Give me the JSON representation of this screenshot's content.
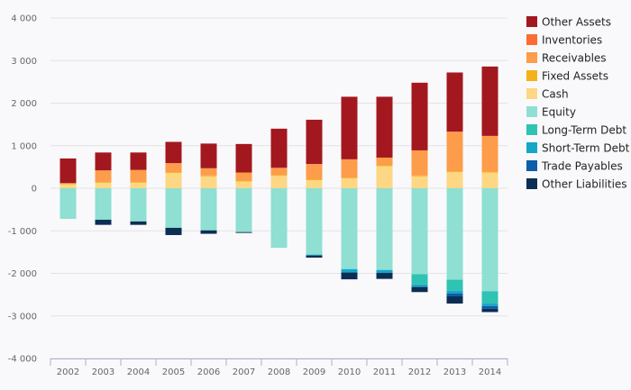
{
  "chart_data": {
    "type": "bar",
    "stacked": true,
    "title": "",
    "xlabel": "",
    "ylabel": "",
    "ylim": [
      -4000,
      4000
    ],
    "yticks": [
      4000,
      3000,
      2000,
      1000,
      0,
      -1000,
      -2000,
      -3000,
      -4000
    ],
    "ytick_labels": [
      "4 000",
      "3 000",
      "2 000",
      "1 000",
      "0",
      "-1 000",
      "-2 000",
      "-3 000",
      "-4 000"
    ],
    "grid": true,
    "legend_position": "right",
    "categories": [
      "2002",
      "2003",
      "2004",
      "2005",
      "2006",
      "2007",
      "2008",
      "2009",
      "2010",
      "2011",
      "2012",
      "2013",
      "2014"
    ],
    "assets": [
      {
        "name": "Cash",
        "color": "#fdd783",
        "values": [
          90,
          130,
          130,
          360,
          280,
          160,
          290,
          190,
          230,
          520,
          280,
          380,
          370
        ]
      },
      {
        "name": "Fixed Assets",
        "color": "#f4b21a",
        "values": [
          20,
          20,
          20,
          20,
          20,
          20,
          20,
          20,
          20,
          20,
          20,
          20,
          20
        ]
      },
      {
        "name": "Receivables",
        "color": "#fd9c4a",
        "values": [
          10,
          270,
          280,
          210,
          170,
          190,
          170,
          360,
          430,
          180,
          590,
          930,
          840
        ]
      },
      {
        "name": "Inventories",
        "color": "#fe6c33",
        "values": [
          0,
          0,
          0,
          0,
          0,
          0,
          0,
          0,
          0,
          0,
          0,
          0,
          0
        ]
      },
      {
        "name": "Other Assets",
        "color": "#a3181f",
        "values": [
          580,
          420,
          410,
          500,
          580,
          670,
          920,
          1040,
          1470,
          1430,
          1590,
          1390,
          1630
        ]
      }
    ],
    "liabilities": [
      {
        "name": "Equity",
        "color": "#8fdfd3",
        "values": [
          -720,
          -740,
          -780,
          -930,
          -990,
          -1030,
          -1400,
          -1560,
          -1900,
          -1920,
          -2020,
          -2150,
          -2420
        ]
      },
      {
        "name": "Long-Term Debt",
        "color": "#2ec3b2",
        "values": [
          0,
          0,
          0,
          0,
          0,
          0,
          0,
          0,
          0,
          0,
          -240,
          -260,
          -290
        ]
      },
      {
        "name": "Short-Term Debt",
        "color": "#16a6c8",
        "values": [
          0,
          0,
          0,
          0,
          0,
          0,
          0,
          -20,
          -80,
          -70,
          -60,
          -60,
          -60
        ]
      },
      {
        "name": "Trade Payables",
        "color": "#0c5ea8",
        "values": [
          0,
          0,
          0,
          0,
          0,
          0,
          0,
          0,
          0,
          0,
          0,
          -70,
          -60
        ]
      },
      {
        "name": "Other Liabilities",
        "color": "#0b2e55",
        "values": [
          0,
          -120,
          -80,
          -170,
          -80,
          -20,
          0,
          -50,
          -160,
          -140,
          -120,
          -170,
          -80
        ]
      }
    ],
    "legend": [
      {
        "name": "Other Assets",
        "color": "#a3181f"
      },
      {
        "name": "Inventories",
        "color": "#fe6c33"
      },
      {
        "name": "Receivables",
        "color": "#fd9c4a"
      },
      {
        "name": "Fixed Assets",
        "color": "#f4b21a"
      },
      {
        "name": "Cash",
        "color": "#fdd783"
      },
      {
        "name": "Equity",
        "color": "#8fdfd3"
      },
      {
        "name": "Long-Term Debt",
        "color": "#2ec3b2"
      },
      {
        "name": "Short-Term Debt",
        "color": "#16a6c8"
      },
      {
        "name": "Trade Payables",
        "color": "#0c5ea8"
      },
      {
        "name": "Other Liabilities",
        "color": "#0b2e55"
      }
    ]
  }
}
